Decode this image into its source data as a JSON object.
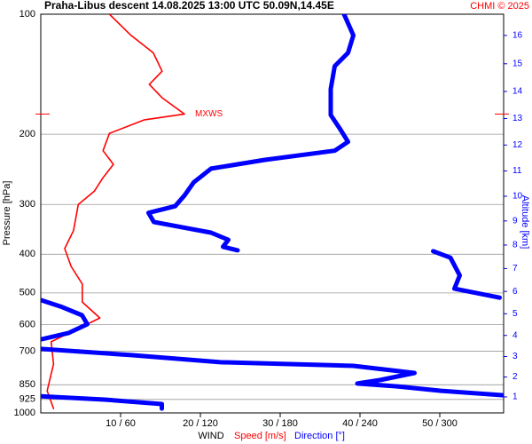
{
  "chart_data": {
    "type": "line",
    "title": "Praha-Libus  descent   14.08.2025 13:00 UTC  50.09N,14.45E",
    "credit": "CHMI © 2025",
    "y_label": "Pressure [hPa]",
    "y2_label": "Altitude [km]",
    "x_label": "WIND",
    "annotation": "MXWS",
    "annotation_pressure": 178,
    "ylog": true,
    "ylim": [
      100,
      1000
    ],
    "yticks": [
      100,
      200,
      300,
      400,
      500,
      600,
      700,
      850,
      925,
      1000
    ],
    "y2ticks": [
      1,
      2,
      3,
      4,
      5,
      6,
      7,
      8,
      9,
      10,
      11,
      12,
      13,
      14,
      15,
      16
    ],
    "xlim": [
      0,
      58
    ],
    "x2lim": [
      0,
      348
    ],
    "xticks": [
      {
        "value": 10,
        "label": "10 / 60"
      },
      {
        "value": 20,
        "label": "20 / 120"
      },
      {
        "value": 30,
        "label": "30 / 180"
      },
      {
        "value": 40,
        "label": "40 / 240"
      },
      {
        "value": 50,
        "label": "50 / 300"
      }
    ],
    "grid": true,
    "series": [
      {
        "name": "Speed [m/s]",
        "color": "#ff0000",
        "pressure": [
          100,
          113,
          125,
          139,
          150,
          162,
          178,
          184,
          199,
          220,
          238,
          257,
          278,
          300,
          349,
          387,
          429,
          475,
          527,
          578,
          599,
          663,
          754,
          880,
          975
        ],
        "values": [
          8.6,
          11.3,
          14.1,
          15.2,
          13.6,
          15.2,
          18.0,
          13.0,
          8.6,
          7.8,
          9.1,
          7.8,
          6.7,
          4.7,
          4.1,
          3.0,
          3.8,
          5.2,
          5.2,
          7.4,
          5.8,
          1.3,
          1.6,
          0.8,
          1.6
        ]
      },
      {
        "name": "Direction [°]",
        "color": "#0000ff",
        "axis": "x2",
        "pressure": [
          100,
          113,
          125,
          135,
          154,
          179,
          194,
          209,
          220,
          232,
          244,
          264,
          285,
          303,
          315,
          332,
          353,
          368,
          383,
          391,
          null,
          393,
          408,
          452,
          488,
          514,
          null,
          521,
          541,
          569,
          599,
          630,
          653,
          null,
          691,
          716,
          746,
          762,
          794,
          827,
          844,
          858,
          880,
          903,
          null,
          908,
          926,
          950,
          975
        ],
        "values": [
          228,
          235,
          231,
          221,
          218,
          218,
          225,
          231,
          221,
          168,
          128,
          115,
          108,
          101,
          81,
          85,
          128,
          141,
          137,
          148,
          null,
          295,
          308,
          315,
          311,
          345,
          null,
          0,
          15,
          31,
          35,
          21,
          1,
          null,
          0,
          68,
          135,
          235,
          281,
          255,
          238,
          268,
          301,
          348,
          null,
          0,
          48,
          91,
          91
        ]
      }
    ]
  }
}
